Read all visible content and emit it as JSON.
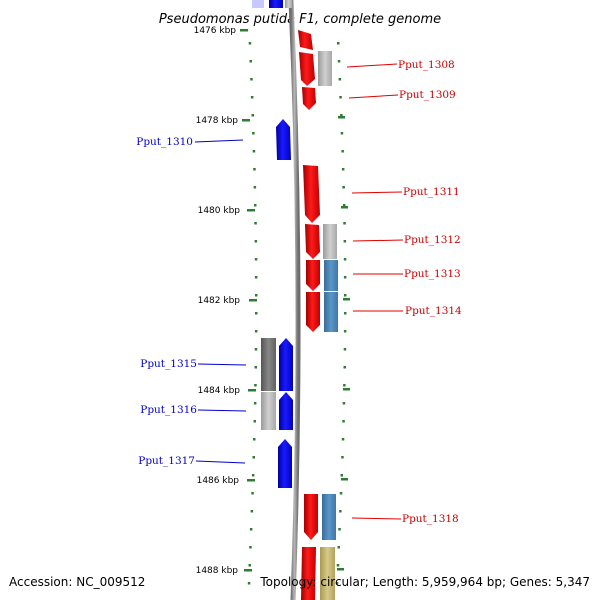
{
  "title": "Pseudomonas putida F1, complete genome",
  "footer": {
    "accession": "Accession: NC_009512",
    "topology": "Topology: circular; Length: 5,959,964 bp; Genes: 5,347"
  },
  "scale_labels": [
    "1476 kbp",
    "1478 kbp",
    "1480 kbp",
    "1482 kbp",
    "1484 kbp",
    "1486 kbp",
    "1488 kbp"
  ],
  "gene_labels": {
    "forward": [
      "Pput_1308",
      "Pput_1309",
      "Pput_1311",
      "Pput_1312",
      "Pput_1313",
      "Pput_1314",
      "Pput_1318"
    ],
    "reverse": [
      "Pput_1310",
      "Pput_1315",
      "Pput_1316",
      "Pput_1317"
    ]
  },
  "colors": {
    "forward_strand": "#ff0000",
    "reverse_strand": "#0000ff",
    "backbone": "#888888",
    "tick": "#2e7d32",
    "cog_gray": "#b0b0b0",
    "cog_steelblue": "#4682b4",
    "cog_olive": "#c8b96a"
  }
}
